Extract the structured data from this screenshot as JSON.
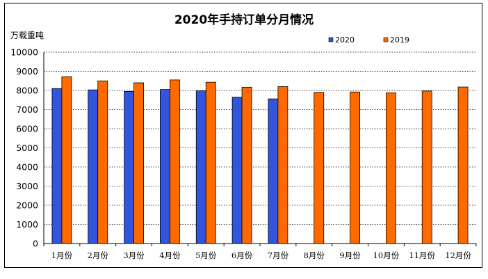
{
  "chart_data": {
    "type": "bar",
    "title": "2020年手持订单分月情况",
    "ylabel": "万载重吨",
    "xlabel": "",
    "categories": [
      "1月份",
      "2月份",
      "3月份",
      "4月份",
      "5月份",
      "6月份",
      "7月份",
      "8月份",
      "9月份",
      "10月份",
      "11月份",
      "12月份"
    ],
    "series": [
      {
        "name": "2020",
        "color": "#3355dd",
        "values": [
          8100,
          8030,
          7950,
          8050,
          7980,
          7650,
          7560,
          null,
          null,
          null,
          null,
          null
        ]
      },
      {
        "name": "2019",
        "color": "#ff6a00",
        "values": [
          8720,
          8500,
          8400,
          8550,
          8430,
          8170,
          8200,
          7900,
          7920,
          7880,
          7970,
          8180
        ]
      }
    ],
    "ylim": [
      0,
      10000
    ],
    "yticks": [
      0,
      1000,
      2000,
      3000,
      4000,
      5000,
      6000,
      7000,
      8000,
      9000,
      10000
    ],
    "grid": true,
    "legend_position": "top-right"
  }
}
